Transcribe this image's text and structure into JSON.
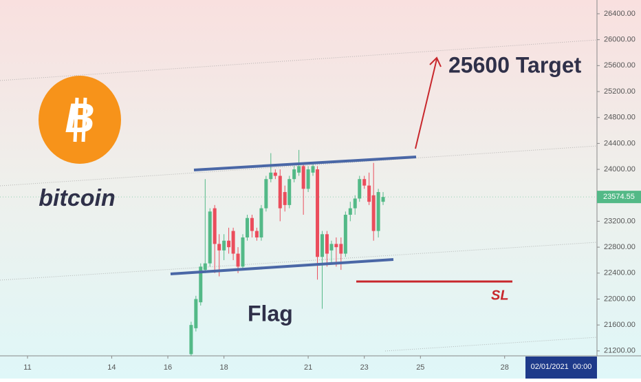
{
  "chart_data": {
    "type": "candlestick",
    "annotations": {
      "target": "25600 Target",
      "flag": "Flag",
      "stop": "SL",
      "brand": "bitcoin",
      "logo_symbol": "B"
    },
    "date_label": "02/01/2021  00:00",
    "last_price": 23574.55,
    "up_color": "#53b987",
    "down_color": "#eb4d5c",
    "xlim": [
      10.02,
      31.29
    ],
    "xticks": [
      11,
      14,
      16,
      18,
      21,
      23,
      25,
      28
    ],
    "ylim": [
      21124,
      26612
    ],
    "yticks": [
      {
        "value": 21200,
        "label": "21200.00"
      },
      {
        "value": 21600,
        "label": "21600.00"
      },
      {
        "value": 22000,
        "label": "22000.00"
      },
      {
        "value": 22400,
        "label": "22400.00"
      },
      {
        "value": 22800,
        "label": "22800.00"
      },
      {
        "value": 23200,
        "label": "23200.00"
      },
      {
        "value": 23600,
        "label": "23600.00"
      },
      {
        "value": 24000,
        "label": "24000.00"
      },
      {
        "value": 24400,
        "label": "24400.00"
      },
      {
        "value": 24800,
        "label": "24800.00"
      },
      {
        "value": 25200,
        "label": "25200.00"
      },
      {
        "value": 25600,
        "label": "25600.00"
      },
      {
        "value": 26000,
        "label": "26000.00"
      },
      {
        "value": 26400,
        "label": "26400.00"
      }
    ],
    "x": [
      16.83,
      17.0,
      17.17,
      17.33,
      17.5,
      17.67,
      17.83,
      18.0,
      18.17,
      18.33,
      18.5,
      18.67,
      18.83,
      19.0,
      19.17,
      19.33,
      19.5,
      19.67,
      19.83,
      20.0,
      20.17,
      20.33,
      20.5,
      20.67,
      20.83,
      21.0,
      21.17,
      21.33,
      21.5,
      21.67,
      21.83,
      22.0,
      22.17,
      22.33,
      22.5,
      22.67,
      22.83,
      23.0,
      23.17,
      23.33,
      23.5,
      23.67
    ],
    "open": [
      21150,
      21550,
      21950,
      22450,
      22550,
      23400,
      22850,
      22750,
      22900,
      23050,
      22700,
      22500,
      22950,
      23250,
      23050,
      22950,
      23400,
      23850,
      23950,
      23900,
      23650,
      23450,
      23850,
      23950,
      24050,
      23700,
      23950,
      24000,
      22650,
      23000,
      22750,
      22850,
      22850,
      22700,
      23300,
      23400,
      23550,
      23850,
      23750,
      23600,
      23050,
      23500
    ],
    "high": [
      21650,
      22050,
      22550,
      23850,
      23400,
      23450,
      23000,
      23000,
      23100,
      23100,
      22800,
      23000,
      23300,
      23300,
      23100,
      23450,
      23900,
      24250,
      24000,
      24000,
      23750,
      23900,
      24050,
      24300,
      24100,
      24050,
      24100,
      24050,
      23050,
      23050,
      22900,
      22950,
      22950,
      23350,
      23500,
      23600,
      23900,
      23900,
      23950,
      24100,
      23700,
      23650
    ],
    "low": [
      21100,
      21500,
      21900,
      22400,
      22500,
      22400,
      22350,
      22600,
      22700,
      22600,
      22400,
      22450,
      22900,
      22950,
      22900,
      22900,
      23350,
      23800,
      23850,
      23200,
      23350,
      23400,
      23800,
      23900,
      23300,
      23650,
      23900,
      22300,
      21850,
      22500,
      22550,
      22500,
      22450,
      22650,
      23200,
      23300,
      23500,
      23700,
      23450,
      22900,
      22950,
      23450
    ],
    "close": [
      21600,
      22000,
      22500,
      22550,
      23350,
      22850,
      22750,
      22900,
      22800,
      22700,
      22500,
      22950,
      23250,
      23050,
      22950,
      23400,
      23850,
      23950,
      23900,
      23400,
      23450,
      23850,
      24000,
      24050,
      23700,
      24000,
      24050,
      22650,
      23000,
      22700,
      22850,
      22800,
      22700,
      23300,
      23400,
      23550,
      23850,
      23750,
      23500,
      23050,
      23650,
      23574.55
    ]
  }
}
